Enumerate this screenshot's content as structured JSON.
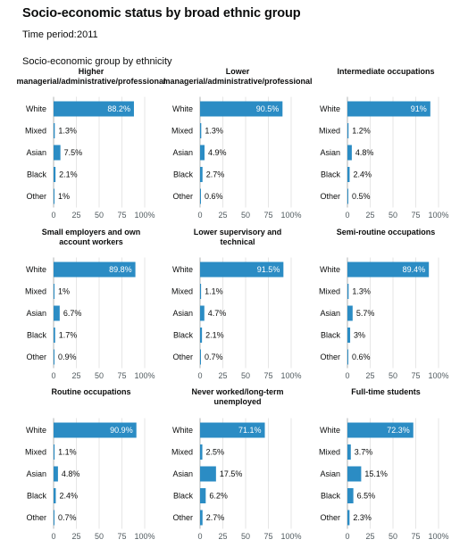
{
  "page": {
    "title": "Socio-economic status by broad ethnic group",
    "time_period_label": "Time period:",
    "time_period_value": "2011",
    "section_title": "Socio-economic group by ethnicity"
  },
  "colors": {
    "bar": "#2b8cc4"
  },
  "chart_data": [
    {
      "type": "bar",
      "orientation": "horizontal",
      "title": "Higher managerial/administrative/professional",
      "categories": [
        "White",
        "Mixed",
        "Asian",
        "Black",
        "Other"
      ],
      "values": [
        88.2,
        1.3,
        7.5,
        2.1,
        1
      ],
      "labels": [
        "88.2%",
        "1.3%",
        "7.5%",
        "2.1%",
        "1%"
      ],
      "xlim": [
        0,
        100
      ],
      "xticks": [
        "0",
        "25",
        "50",
        "75",
        "100%"
      ],
      "grid": true
    },
    {
      "type": "bar",
      "orientation": "horizontal",
      "title": "Lower managerial/administrative/professional",
      "categories": [
        "White",
        "Mixed",
        "Asian",
        "Black",
        "Other"
      ],
      "values": [
        90.5,
        1.3,
        4.9,
        2.7,
        0.6
      ],
      "labels": [
        "90.5%",
        "1.3%",
        "4.9%",
        "2.7%",
        "0.6%"
      ],
      "xlim": [
        0,
        100
      ],
      "xticks": [
        "0",
        "25",
        "50",
        "75",
        "100%"
      ],
      "grid": true
    },
    {
      "type": "bar",
      "orientation": "horizontal",
      "title": "Intermediate occupations",
      "categories": [
        "White",
        "Mixed",
        "Asian",
        "Black",
        "Other"
      ],
      "values": [
        91,
        1.2,
        4.8,
        2.4,
        0.5
      ],
      "labels": [
        "91%",
        "1.2%",
        "4.8%",
        "2.4%",
        "0.5%"
      ],
      "xlim": [
        0,
        100
      ],
      "xticks": [
        "0",
        "25",
        "50",
        "75",
        "100%"
      ],
      "grid": true
    },
    {
      "type": "bar",
      "orientation": "horizontal",
      "title": "Small employers and own account workers",
      "categories": [
        "White",
        "Mixed",
        "Asian",
        "Black",
        "Other"
      ],
      "values": [
        89.8,
        1,
        6.7,
        1.7,
        0.9
      ],
      "labels": [
        "89.8%",
        "1%",
        "6.7%",
        "1.7%",
        "0.9%"
      ],
      "xlim": [
        0,
        100
      ],
      "xticks": [
        "0",
        "25",
        "50",
        "75",
        "100%"
      ],
      "grid": true
    },
    {
      "type": "bar",
      "orientation": "horizontal",
      "title": "Lower supervisory and technical",
      "categories": [
        "White",
        "Mixed",
        "Asian",
        "Black",
        "Other"
      ],
      "values": [
        91.5,
        1.1,
        4.7,
        2.1,
        0.7
      ],
      "labels": [
        "91.5%",
        "1.1%",
        "4.7%",
        "2.1%",
        "0.7%"
      ],
      "xlim": [
        0,
        100
      ],
      "xticks": [
        "0",
        "25",
        "50",
        "75",
        "100%"
      ],
      "grid": true
    },
    {
      "type": "bar",
      "orientation": "horizontal",
      "title": "Semi-routine occupations",
      "categories": [
        "White",
        "Mixed",
        "Asian",
        "Black",
        "Other"
      ],
      "values": [
        89.4,
        1.3,
        5.7,
        3,
        0.6
      ],
      "labels": [
        "89.4%",
        "1.3%",
        "5.7%",
        "3%",
        "0.6%"
      ],
      "xlim": [
        0,
        100
      ],
      "xticks": [
        "0",
        "25",
        "50",
        "75",
        "100%"
      ],
      "grid": true
    },
    {
      "type": "bar",
      "orientation": "horizontal",
      "title": "Routine occupations",
      "categories": [
        "White",
        "Mixed",
        "Asian",
        "Black",
        "Other"
      ],
      "values": [
        90.9,
        1.1,
        4.8,
        2.4,
        0.7
      ],
      "labels": [
        "90.9%",
        "1.1%",
        "4.8%",
        "2.4%",
        "0.7%"
      ],
      "xlim": [
        0,
        100
      ],
      "xticks": [
        "0",
        "25",
        "50",
        "75",
        "100%"
      ],
      "grid": true
    },
    {
      "type": "bar",
      "orientation": "horizontal",
      "title": "Never worked/long-term unemployed",
      "categories": [
        "White",
        "Mixed",
        "Asian",
        "Black",
        "Other"
      ],
      "values": [
        71.1,
        2.5,
        17.5,
        6.2,
        2.7
      ],
      "labels": [
        "71.1%",
        "2.5%",
        "17.5%",
        "6.2%",
        "2.7%"
      ],
      "xlim": [
        0,
        100
      ],
      "xticks": [
        "0",
        "25",
        "50",
        "75",
        "100%"
      ],
      "grid": true
    },
    {
      "type": "bar",
      "orientation": "horizontal",
      "title": "Full-time students",
      "categories": [
        "White",
        "Mixed",
        "Asian",
        "Black",
        "Other"
      ],
      "values": [
        72.3,
        3.7,
        15.1,
        6.5,
        2.3
      ],
      "labels": [
        "72.3%",
        "3.7%",
        "15.1%",
        "6.5%",
        "2.3%"
      ],
      "xlim": [
        0,
        100
      ],
      "xticks": [
        "0",
        "25",
        "50",
        "75",
        "100%"
      ],
      "grid": true
    }
  ]
}
